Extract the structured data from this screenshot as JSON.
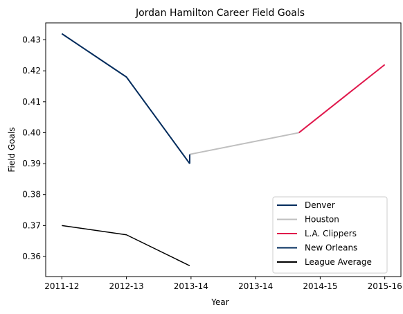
{
  "chart_data": {
    "type": "line",
    "title": "Jordan Hamilton Career Field Goals",
    "xlabel": "Year",
    "ylabel": "Field Goals",
    "x_tick_labels": [
      "2011-12",
      "2012-13",
      "2013-14",
      "2013-14",
      "2014-15",
      "2015-16"
    ],
    "y_ticks": [
      0.36,
      0.37,
      0.38,
      0.39,
      0.4,
      0.41,
      0.42,
      0.43
    ],
    "y_tick_labels": [
      "0.36",
      "0.37",
      "0.38",
      "0.39",
      "0.40",
      "0.41",
      "0.42",
      "0.43"
    ],
    "ylim": [
      0.3535,
      0.4355
    ],
    "xlim": [
      -0.25,
      5.25
    ],
    "grid": false,
    "legend_position": "lower-right",
    "series": [
      {
        "name": "Denver",
        "color": "#002b5c",
        "points": [
          [
            0,
            0.432
          ],
          [
            1.0,
            0.418
          ],
          [
            1.98,
            0.39
          ]
        ]
      },
      {
        "name": "Houston",
        "color": "#bfbfbf",
        "points": [
          [
            1.98,
            0.393
          ],
          [
            3.67,
            0.4
          ]
        ]
      },
      {
        "name": "L.A. Clippers",
        "color": "#e0184c",
        "points": [
          [
            3.67,
            0.4
          ],
          [
            5.0,
            0.422
          ]
        ]
      },
      {
        "name": "New Orleans",
        "color": "#002b5c",
        "points": [
          [
            1.98,
            0.39
          ],
          [
            1.98,
            0.393
          ]
        ]
      },
      {
        "name": "League Average",
        "color": "#000000",
        "points": [
          [
            0,
            0.37
          ],
          [
            1.0,
            0.367
          ],
          [
            1.98,
            0.357
          ]
        ]
      }
    ]
  }
}
